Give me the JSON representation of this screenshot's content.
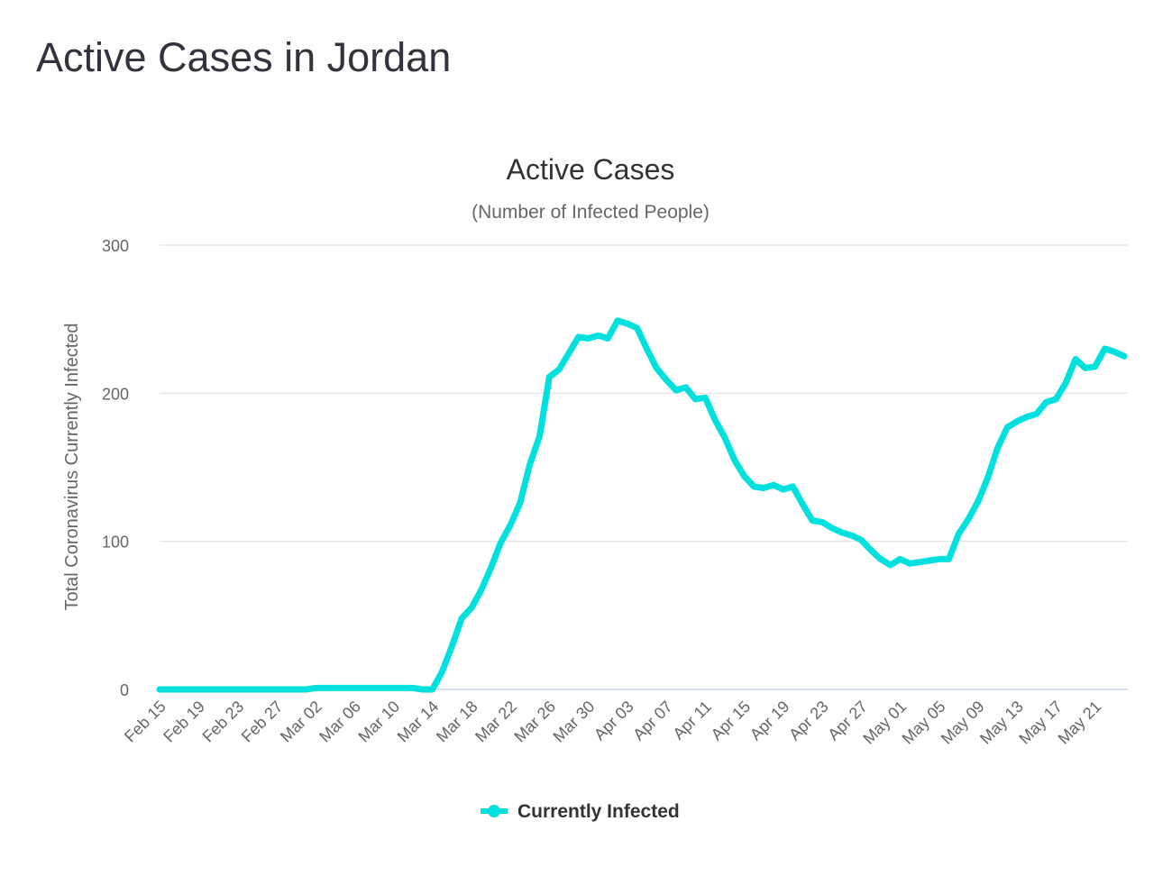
{
  "page_title": "Active Cases in Jordan",
  "chart_data": {
    "type": "line",
    "title": "Active Cases",
    "subtitle": "(Number of Infected People)",
    "xlabel": "",
    "ylabel": "Total Coronavirus Currently Infected",
    "ylim": [
      0,
      300
    ],
    "yticks": [
      0,
      100,
      200,
      300
    ],
    "grid": true,
    "legend_position": "bottom-center",
    "x_start": "Feb 15",
    "x_tick_labels": [
      "Feb 15",
      "Feb 19",
      "Feb 23",
      "Feb 27",
      "Mar 02",
      "Mar 06",
      "Mar 10",
      "Mar 14",
      "Mar 18",
      "Mar 22",
      "Mar 26",
      "Mar 30",
      "Apr 03",
      "Apr 07",
      "Apr 11",
      "Apr 15",
      "Apr 19",
      "Apr 23",
      "Apr 27",
      "May 01",
      "May 05",
      "May 09",
      "May 13",
      "May 17",
      "May 21"
    ],
    "x_tick_every_days": 4,
    "series": [
      {
        "name": "Currently Infected",
        "color": "#00e1df",
        "values": [
          0,
          0,
          0,
          0,
          0,
          0,
          0,
          0,
          0,
          0,
          0,
          0,
          0,
          0,
          0,
          0,
          1,
          1,
          1,
          1,
          1,
          1,
          1,
          1,
          1,
          1,
          1,
          0,
          0,
          12,
          29,
          48,
          55,
          67,
          82,
          99,
          111,
          126,
          152,
          171,
          211,
          216,
          227,
          238,
          237,
          239,
          237,
          249,
          247,
          244,
          230,
          217,
          209,
          202,
          204,
          196,
          197,
          182,
          170,
          155,
          144,
          137,
          136,
          138,
          135,
          137,
          125,
          114,
          113,
          109,
          106,
          104,
          101,
          94,
          88,
          84,
          88,
          85,
          86,
          87,
          88,
          88,
          105,
          115,
          127,
          143,
          163,
          177,
          181,
          184,
          186,
          194,
          196,
          207,
          223,
          217,
          218,
          230,
          228,
          225
        ]
      }
    ]
  }
}
